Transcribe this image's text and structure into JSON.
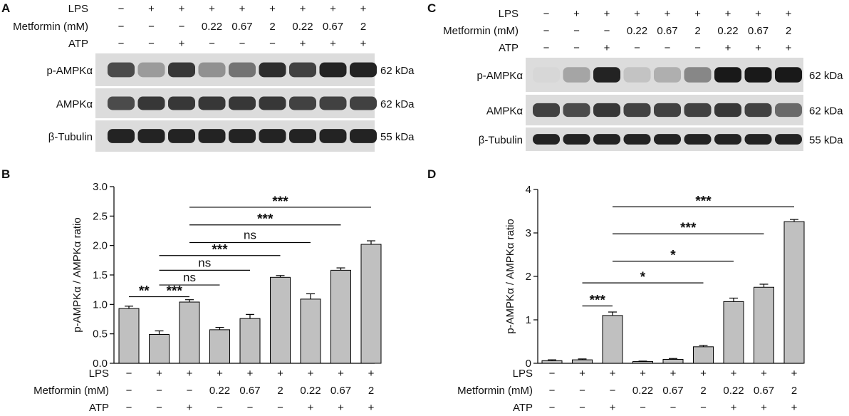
{
  "treatments": {
    "row_labels": [
      "LPS",
      "Metformin (mM)",
      "ATP"
    ],
    "lps": [
      "−",
      "+",
      "+",
      "+",
      "+",
      "+",
      "+",
      "+",
      "+"
    ],
    "metformin": [
      "−",
      "−",
      "−",
      "0.22",
      "0.67",
      "2",
      "0.22",
      "0.67",
      "2"
    ],
    "atp": [
      "−",
      "−",
      "+",
      "−",
      "−",
      "−",
      "+",
      "+",
      "+"
    ]
  },
  "blots": [
    {
      "panel": "A",
      "bands": [
        {
          "name": "p-AMPKα",
          "size": "62 kDa",
          "intensity": [
            0.75,
            0.35,
            0.85,
            0.4,
            0.55,
            0.9,
            0.8,
            0.95,
            0.95
          ]
        },
        {
          "name": "AMPKα",
          "size": "62 kDa",
          "intensity": [
            0.75,
            0.85,
            0.85,
            0.85,
            0.85,
            0.85,
            0.8,
            0.8,
            0.8
          ]
        },
        {
          "name": "β-Tubulin",
          "size": "55 kDa",
          "intensity": [
            0.95,
            0.95,
            0.95,
            0.95,
            0.95,
            0.95,
            0.95,
            0.95,
            0.95
          ]
        }
      ]
    },
    {
      "panel": "C",
      "bands": [
        {
          "name": "p-AMPKα",
          "size": "62 kDa",
          "intensity": [
            0.05,
            0.3,
            0.95,
            0.15,
            0.25,
            0.45,
            1.0,
            1.0,
            1.0
          ]
        },
        {
          "name": "AMPKα",
          "size": "62 kDa",
          "intensity": [
            0.8,
            0.75,
            0.85,
            0.8,
            0.8,
            0.8,
            0.85,
            0.8,
            0.6
          ]
        },
        {
          "name": "β-Tubulin",
          "size": "55 kDa",
          "intensity": [
            0.95,
            0.95,
            0.95,
            0.95,
            0.95,
            0.95,
            0.95,
            0.95,
            0.95
          ]
        }
      ]
    }
  ],
  "chart_data": [
    {
      "panel": "B",
      "type": "bar",
      "ylabel": "p-AMPKα  / AMPKα  ratio",
      "ylim": [
        0,
        3.0
      ],
      "yticks": [
        "0.0",
        "0.5",
        "1.0",
        "1.5",
        "2.0",
        "2.5",
        "3.0"
      ],
      "values": [
        0.93,
        0.49,
        1.04,
        0.57,
        0.76,
        1.46,
        1.09,
        1.58,
        2.02
      ],
      "errors": [
        0.04,
        0.06,
        0.04,
        0.04,
        0.07,
        0.03,
        0.09,
        0.04,
        0.06
      ],
      "comparisons": [
        {
          "from": 0,
          "to": 1,
          "y": 1.13,
          "label": "**"
        },
        {
          "from": 1,
          "to": 2,
          "y": 1.13,
          "label": "***"
        },
        {
          "from": 1,
          "to": 3,
          "y": 1.33,
          "label": "ns"
        },
        {
          "from": 1,
          "to": 4,
          "y": 1.58,
          "label": "ns"
        },
        {
          "from": 1,
          "to": 5,
          "y": 1.83,
          "label": "***"
        },
        {
          "from": 2,
          "to": 6,
          "y": 2.05,
          "label": "ns"
        },
        {
          "from": 2,
          "to": 7,
          "y": 2.35,
          "label": "***"
        },
        {
          "from": 2,
          "to": 8,
          "y": 2.65,
          "label": "***"
        }
      ],
      "grid": false,
      "bar_color": "#c0c0c0"
    },
    {
      "panel": "D",
      "type": "bar",
      "ylabel": "p-AMPKα / AMPKα ratio",
      "ylim": [
        0,
        4
      ],
      "yticks": [
        "0",
        "1",
        "2",
        "3",
        "4"
      ],
      "values": [
        0.06,
        0.08,
        1.1,
        0.04,
        0.09,
        0.38,
        1.42,
        1.75,
        3.26
      ],
      "errors": [
        0.02,
        0.02,
        0.08,
        0.01,
        0.02,
        0.03,
        0.08,
        0.07,
        0.05
      ],
      "comparisons": [
        {
          "from": 1,
          "to": 2,
          "y": 1.32,
          "label": "***"
        },
        {
          "from": 1,
          "to": 5,
          "y": 1.85,
          "label": "*"
        },
        {
          "from": 2,
          "to": 6,
          "y": 2.35,
          "label": "*"
        },
        {
          "from": 2,
          "to": 7,
          "y": 2.98,
          "label": "***"
        },
        {
          "from": 2,
          "to": 8,
          "y": 3.6,
          "label": "***"
        }
      ],
      "grid": false,
      "bar_color": "#c0c0c0"
    }
  ]
}
